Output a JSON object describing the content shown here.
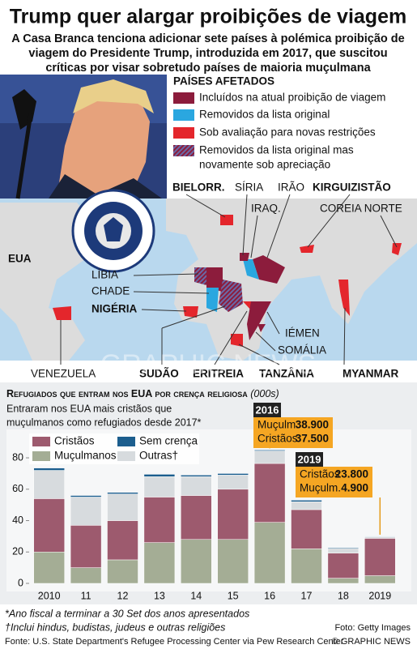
{
  "header": {
    "title": "Trump quer alargar proibições de viagem",
    "subtitle": [
      "A Casa Branca tenciona adicionar sete países à polémica proibição de",
      "viagem do Presidente Trump, introduzida em 2017, que suscitou",
      "críticas por visar sobretudo países de maioria muçulmana"
    ]
  },
  "map": {
    "legend_title": "PAÍSES AFETADOS",
    "legend": [
      {
        "label": [
          "Incluídos na atual proibição de viagem"
        ],
        "color": "#8c1c3c"
      },
      {
        "label": [
          "Removidos da lista original"
        ],
        "color": "#2aa7e0"
      },
      {
        "label": [
          "Sob avaliação para novas restrições"
        ],
        "color": "#e4262c"
      },
      {
        "label": [
          "Removidos da lista original mas",
          "novamente sob apreciação"
        ],
        "color": "#6a5a8c",
        "hatched": true
      }
    ],
    "labels": [
      "BIELORR.",
      "SÍRIA",
      "IRÃO",
      "KIRGUIZISTÃO",
      "IRAQ.",
      "COREIA NORTE",
      "EUA",
      "LÍBIA",
      "CHADE",
      "NIGÉRIA",
      "IÉMEN",
      "SOMÁLIA",
      "VENEZUELA",
      "SUDÃO",
      "ERITREIA",
      "TANZÂNIA",
      "MYANMAR"
    ],
    "watermark": "GRAPHIC NEWS"
  },
  "chart_data": {
    "type": "stacked_bar",
    "title": "Refugiados que entram nos EUA por crença religiosa",
    "unit": "(000s)",
    "subtitle": [
      "Entraram nos EUA mais cristãos que",
      "muçulmanos como refugiados desde 2017*"
    ],
    "categories": [
      "2010",
      "11",
      "12",
      "13",
      "14",
      "15",
      "16",
      "17",
      "18",
      "2019"
    ],
    "series": [
      {
        "name": "Muçulmanos",
        "color": "#a4ad95",
        "values": [
          20,
          10,
          15,
          26,
          28,
          28,
          38.9,
          22,
          3.3,
          4.9
        ],
        "value_labels": [
          null,
          null,
          null,
          null,
          null,
          null,
          "38.900",
          null,
          null,
          "4.900"
        ]
      },
      {
        "name": "Cristãos",
        "color": "#9d5a6e",
        "values": [
          34,
          27,
          25,
          29,
          28,
          32,
          37.5,
          25,
          16,
          23.8
        ],
        "value_labels": [
          null,
          null,
          null,
          null,
          null,
          null,
          "37.500",
          null,
          null,
          "23.800"
        ]
      },
      {
        "name": "Outras†",
        "color": "#d7dbde",
        "values": [
          18,
          18,
          17,
          13,
          12,
          9,
          8,
          5,
          3,
          1
        ]
      },
      {
        "name": "Sem crença",
        "color": "#1c5e8e",
        "values": [
          1.5,
          1,
          1,
          1.5,
          1,
          1,
          0.6,
          1,
          0.5,
          0.3
        ]
      }
    ],
    "ylim": [
      0,
      95
    ],
    "yticks": [
      0,
      20,
      40,
      60,
      80
    ],
    "annotations": [
      {
        "year": "2016",
        "index": 6,
        "rows": [
          {
            "label": "Muçulm.",
            "series": 0
          },
          {
            "label": "Cristãos",
            "series": 1
          }
        ]
      },
      {
        "year": "2019",
        "index": 9,
        "rows": [
          {
            "label": "Cristãos",
            "series": 1
          },
          {
            "label": "Muçulm.",
            "series": 0
          }
        ]
      }
    ]
  },
  "footer": {
    "notes": [
      "*Ano fiscal a terminar a 30 Set dos anos apresentados",
      "†Inclui hindus, budistas, judeus e outras religiões"
    ],
    "source": "Fonte: U.S. State Department's Refugee Processing Center via Pew Research Center",
    "photo": "Foto: Getty Images",
    "credit": "© GRAPHIC NEWS"
  }
}
